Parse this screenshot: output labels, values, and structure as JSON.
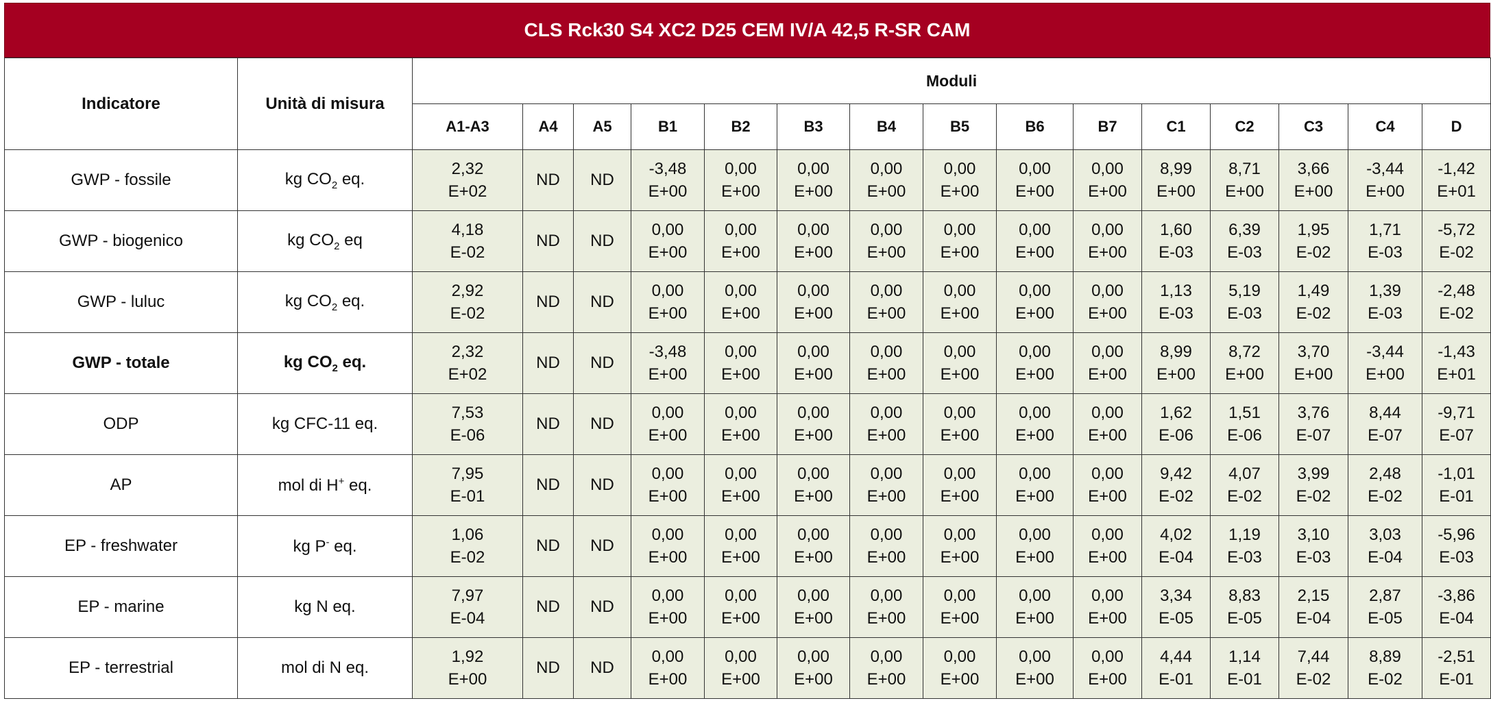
{
  "title": "CLS Rck30 S4 XC2 D25 CEM IV/A 42,5 R-SR CAM",
  "headers": {
    "indicator": "Indicatore",
    "unit": "Unità di misura",
    "modules": "Moduli"
  },
  "modules": [
    "A1-A3",
    "A4",
    "A5",
    "B1",
    "B2",
    "B3",
    "B4",
    "B5",
    "B6",
    "B7",
    "C1",
    "C2",
    "C3",
    "C4",
    "D"
  ],
  "rows": [
    {
      "indicator": "GWP - fossile",
      "unit_pre": "kg CO",
      "unit_sub": "2",
      "unit_sup": "",
      "unit_post": " eq.",
      "bold": false,
      "values": [
        [
          "2,32",
          "E+02"
        ],
        [
          "ND"
        ],
        [
          "ND"
        ],
        [
          "-3,48",
          "E+00"
        ],
        [
          "0,00",
          "E+00"
        ],
        [
          "0,00",
          "E+00"
        ],
        [
          "0,00",
          "E+00"
        ],
        [
          "0,00",
          "E+00"
        ],
        [
          "0,00",
          "E+00"
        ],
        [
          "0,00",
          "E+00"
        ],
        [
          "8,99",
          "E+00"
        ],
        [
          "8,71",
          "E+00"
        ],
        [
          "3,66",
          "E+00"
        ],
        [
          "-3,44",
          "E+00"
        ],
        [
          "-1,42",
          "E+01"
        ]
      ]
    },
    {
      "indicator": "GWP - biogenico",
      "unit_pre": "kg CO",
      "unit_sub": "2",
      "unit_sup": "",
      "unit_post": " eq",
      "bold": false,
      "values": [
        [
          "4,18",
          "E-02"
        ],
        [
          "ND"
        ],
        [
          "ND"
        ],
        [
          "0,00",
          "E+00"
        ],
        [
          "0,00",
          "E+00"
        ],
        [
          "0,00",
          "E+00"
        ],
        [
          "0,00",
          "E+00"
        ],
        [
          "0,00",
          "E+00"
        ],
        [
          "0,00",
          "E+00"
        ],
        [
          "0,00",
          "E+00"
        ],
        [
          "1,60",
          "E-03"
        ],
        [
          "6,39",
          "E-03"
        ],
        [
          "1,95",
          "E-02"
        ],
        [
          "1,71",
          "E-03"
        ],
        [
          "-5,72",
          "E-02"
        ]
      ]
    },
    {
      "indicator": "GWP - luluc",
      "unit_pre": "kg CO",
      "unit_sub": "2",
      "unit_sup": "",
      "unit_post": " eq.",
      "bold": false,
      "values": [
        [
          "2,92",
          "E-02"
        ],
        [
          "ND"
        ],
        [
          "ND"
        ],
        [
          "0,00",
          "E+00"
        ],
        [
          "0,00",
          "E+00"
        ],
        [
          "0,00",
          "E+00"
        ],
        [
          "0,00",
          "E+00"
        ],
        [
          "0,00",
          "E+00"
        ],
        [
          "0,00",
          "E+00"
        ],
        [
          "0,00",
          "E+00"
        ],
        [
          "1,13",
          "E-03"
        ],
        [
          "5,19",
          "E-03"
        ],
        [
          "1,49",
          "E-02"
        ],
        [
          "1,39",
          "E-03"
        ],
        [
          "-2,48",
          "E-02"
        ]
      ]
    },
    {
      "indicator": "GWP - totale",
      "unit_pre": "kg CO",
      "unit_sub": "2",
      "unit_sup": "",
      "unit_post": " eq.",
      "bold": true,
      "values": [
        [
          "2,32",
          "E+02"
        ],
        [
          "ND"
        ],
        [
          "ND"
        ],
        [
          "-3,48",
          "E+00"
        ],
        [
          "0,00",
          "E+00"
        ],
        [
          "0,00",
          "E+00"
        ],
        [
          "0,00",
          "E+00"
        ],
        [
          "0,00",
          "E+00"
        ],
        [
          "0,00",
          "E+00"
        ],
        [
          "0,00",
          "E+00"
        ],
        [
          "8,99",
          "E+00"
        ],
        [
          "8,72",
          "E+00"
        ],
        [
          "3,70",
          "E+00"
        ],
        [
          "-3,44",
          "E+00"
        ],
        [
          "-1,43",
          "E+01"
        ]
      ]
    },
    {
      "indicator": "ODP",
      "unit_pre": "kg CFC-11 eq.",
      "unit_sub": "",
      "unit_sup": "",
      "unit_post": "",
      "bold": false,
      "values": [
        [
          "7,53",
          "E-06"
        ],
        [
          "ND"
        ],
        [
          "ND"
        ],
        [
          "0,00",
          "E+00"
        ],
        [
          "0,00",
          "E+00"
        ],
        [
          "0,00",
          "E+00"
        ],
        [
          "0,00",
          "E+00"
        ],
        [
          "0,00",
          "E+00"
        ],
        [
          "0,00",
          "E+00"
        ],
        [
          "0,00",
          "E+00"
        ],
        [
          "1,62",
          "E-06"
        ],
        [
          "1,51",
          "E-06"
        ],
        [
          "3,76",
          "E-07"
        ],
        [
          "8,44",
          "E-07"
        ],
        [
          "-9,71",
          "E-07"
        ]
      ]
    },
    {
      "indicator": "AP",
      "unit_pre": "mol di H",
      "unit_sub": "",
      "unit_sup": "+",
      "unit_post": " eq.",
      "bold": false,
      "values": [
        [
          "7,95",
          "E-01"
        ],
        [
          "ND"
        ],
        [
          "ND"
        ],
        [
          "0,00",
          "E+00"
        ],
        [
          "0,00",
          "E+00"
        ],
        [
          "0,00",
          "E+00"
        ],
        [
          "0,00",
          "E+00"
        ],
        [
          "0,00",
          "E+00"
        ],
        [
          "0,00",
          "E+00"
        ],
        [
          "0,00",
          "E+00"
        ],
        [
          "9,42",
          "E-02"
        ],
        [
          "4,07",
          "E-02"
        ],
        [
          "3,99",
          "E-02"
        ],
        [
          "2,48",
          "E-02"
        ],
        [
          "-1,01",
          "E-01"
        ]
      ]
    },
    {
      "indicator": "EP - freshwater",
      "unit_pre": "kg P",
      "unit_sub": "",
      "unit_sup": "-",
      "unit_post": " eq.",
      "bold": false,
      "values": [
        [
          "1,06",
          "E-02"
        ],
        [
          "ND"
        ],
        [
          "ND"
        ],
        [
          "0,00",
          "E+00"
        ],
        [
          "0,00",
          "E+00"
        ],
        [
          "0,00",
          "E+00"
        ],
        [
          "0,00",
          "E+00"
        ],
        [
          "0,00",
          "E+00"
        ],
        [
          "0,00",
          "E+00"
        ],
        [
          "0,00",
          "E+00"
        ],
        [
          "4,02",
          "E-04"
        ],
        [
          "1,19",
          "E-03"
        ],
        [
          "3,10",
          "E-03"
        ],
        [
          "3,03",
          "E-04"
        ],
        [
          "-5,96",
          "E-03"
        ]
      ]
    },
    {
      "indicator": "EP - marine",
      "unit_pre": "kg N eq.",
      "unit_sub": "",
      "unit_sup": "",
      "unit_post": "",
      "bold": false,
      "values": [
        [
          "7,97",
          "E-04"
        ],
        [
          "ND"
        ],
        [
          "ND"
        ],
        [
          "0,00",
          "E+00"
        ],
        [
          "0,00",
          "E+00"
        ],
        [
          "0,00",
          "E+00"
        ],
        [
          "0,00",
          "E+00"
        ],
        [
          "0,00",
          "E+00"
        ],
        [
          "0,00",
          "E+00"
        ],
        [
          "0,00",
          "E+00"
        ],
        [
          "3,34",
          "E-05"
        ],
        [
          "8,83",
          "E-05"
        ],
        [
          "2,15",
          "E-04"
        ],
        [
          "2,87",
          "E-05"
        ],
        [
          "-3,86",
          "E-04"
        ]
      ]
    },
    {
      "indicator": "EP - terrestrial",
      "unit_pre": "mol di N eq.",
      "unit_sub": "",
      "unit_sup": "",
      "unit_post": "",
      "bold": false,
      "values": [
        [
          "1,92",
          "E+00"
        ],
        [
          "ND"
        ],
        [
          "ND"
        ],
        [
          "0,00",
          "E+00"
        ],
        [
          "0,00",
          "E+00"
        ],
        [
          "0,00",
          "E+00"
        ],
        [
          "0,00",
          "E+00"
        ],
        [
          "0,00",
          "E+00"
        ],
        [
          "0,00",
          "E+00"
        ],
        [
          "0,00",
          "E+00"
        ],
        [
          "4,44",
          "E-01"
        ],
        [
          "1,14",
          "E-01"
        ],
        [
          "7,44",
          "E-02"
        ],
        [
          "8,89",
          "E-02"
        ],
        [
          "-2,51",
          "E-01"
        ]
      ]
    }
  ]
}
